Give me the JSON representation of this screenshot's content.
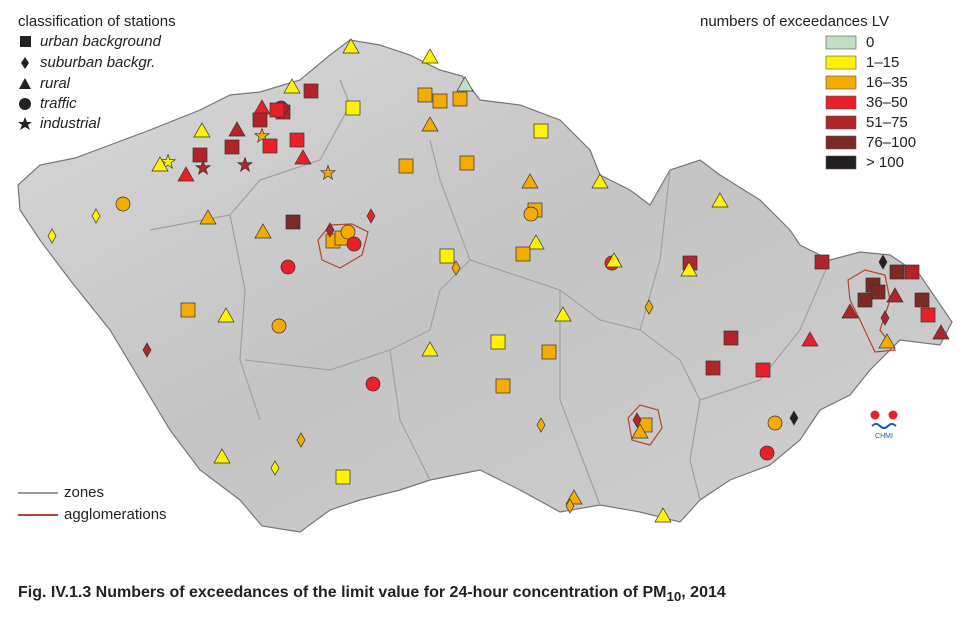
{
  "legend_stations": {
    "title": "classification of stations",
    "items": [
      "urban background",
      "suburban backgr.",
      "rural",
      "traffic",
      "industrial"
    ]
  },
  "legend_exceedances": {
    "title": "numbers of exceedances LV",
    "items": [
      {
        "label": "0",
        "color": "#bfe0c4"
      },
      {
        "label": "1–15",
        "color": "#fff200"
      },
      {
        "label": "16–35",
        "color": "#f5ab00"
      },
      {
        "label": "36–50",
        "color": "#e8202a"
      },
      {
        "label": "51–75",
        "color": "#b3232a"
      },
      {
        "label": "76–100",
        "color": "#7c2b24"
      },
      {
        "label": "> 100",
        "color": "#231f20"
      }
    ]
  },
  "legend_lines": {
    "items": [
      {
        "label": "zones",
        "color": "#9a9a9a"
      },
      {
        "label": "agglomerations",
        "color": "#b5442a"
      }
    ]
  },
  "logo": "CHMI",
  "caption": {
    "text": "Fig. IV.1.3  Numbers of exceedances of the limit value for 24-hour concentration of PM",
    "subscript": "10",
    "suffix": ", 2014"
  }
}
